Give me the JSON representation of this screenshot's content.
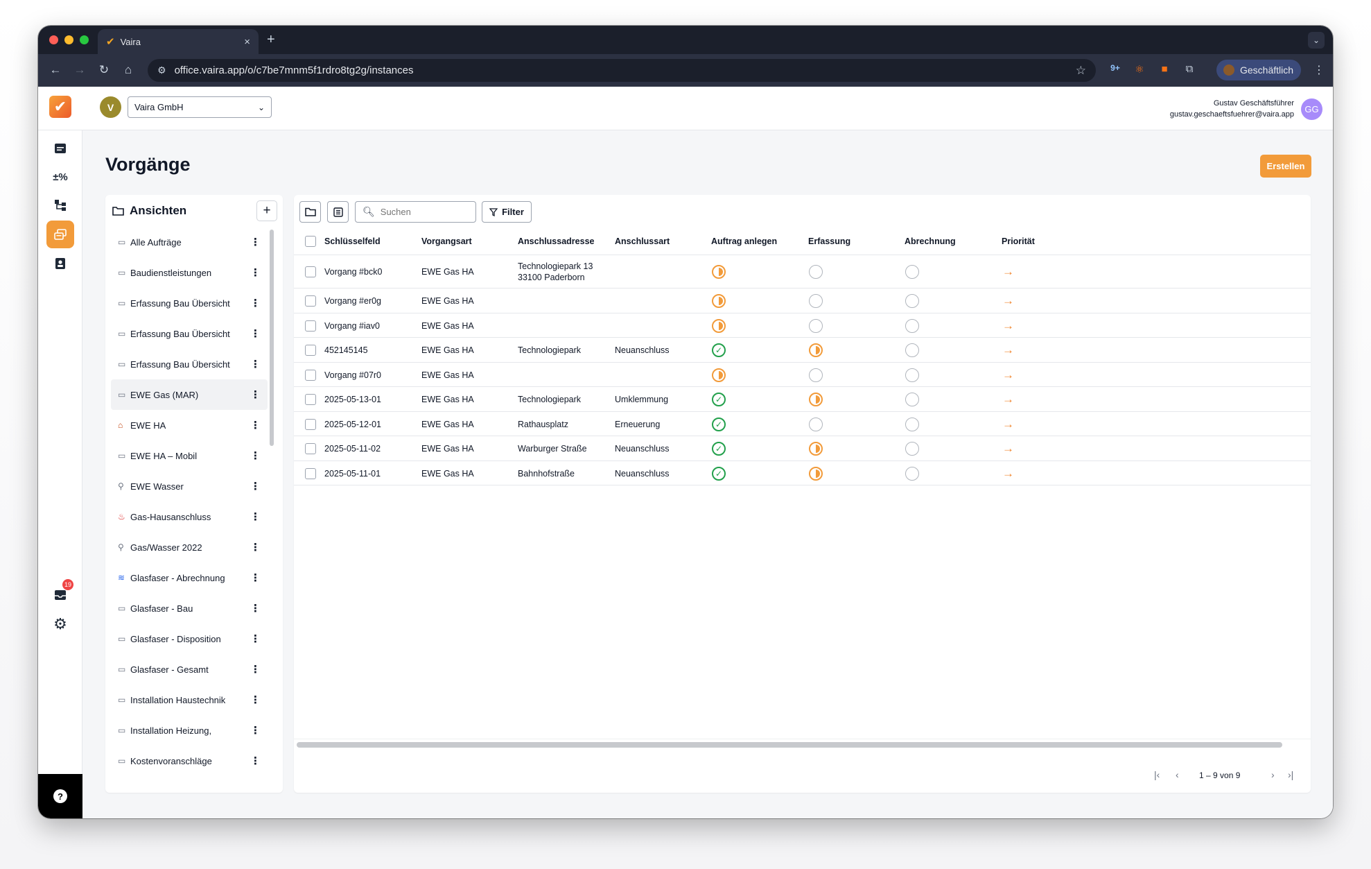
{
  "browser": {
    "tab_title": "Vaira",
    "url": "office.vaira.app/o/c7be7mnm5f1rdro8tg2g/instances",
    "profile_label": "Geschäftlich",
    "extension_badge": "9+",
    "colors": {
      "red": "#ff5f57",
      "yellow": "#febc2e",
      "green": "#28c840"
    }
  },
  "header": {
    "org_initial": "V",
    "org_name": "Vaira GmbH",
    "user_name": "Gustav Geschäftsführer",
    "user_email": "gustav.geschaeftsfuehrer@vaira.app",
    "user_initials": "GG"
  },
  "rail": {
    "inbox_badge": "19",
    "items": [
      "documents-icon",
      "calculator-icon",
      "hierarchy-icon",
      "processes-icon",
      "contacts-icon",
      "inbox-icon",
      "settings-icon",
      "help-icon"
    ]
  },
  "page": {
    "title": "Vorgänge",
    "create_label": "Erstellen"
  },
  "views": {
    "title": "Ansichten",
    "add_label": "+",
    "items": [
      {
        "icon": "folder-icon",
        "label": "Alle Aufträge"
      },
      {
        "icon": "folder-icon",
        "label": "Baudienstleistungen"
      },
      {
        "icon": "folder-icon",
        "label": "Erfassung Bau Übersicht"
      },
      {
        "icon": "folder-icon",
        "label": "Erfassung Bau Übersicht"
      },
      {
        "icon": "folder-icon",
        "label": "Erfassung Bau Übersicht"
      },
      {
        "icon": "folder-icon",
        "label": "EWE Gas (MAR)"
      },
      {
        "icon": "house-icon",
        "label": "EWE HA"
      },
      {
        "icon": "folder-icon",
        "label": "EWE HA – Mobil"
      },
      {
        "icon": "tap-icon",
        "label": "EWE Wasser"
      },
      {
        "icon": "fire-extinguisher-icon",
        "label": "Gas-Hausanschluss"
      },
      {
        "icon": "tap-icon",
        "label": "Gas/Wasser 2022"
      },
      {
        "icon": "wifi-icon",
        "label": "Glasfaser - Abrechnung"
      },
      {
        "icon": "folder-icon",
        "label": "Glasfaser - Bau"
      },
      {
        "icon": "folder-icon",
        "label": "Glasfaser - Disposition"
      },
      {
        "icon": "folder-icon",
        "label": "Glasfaser - Gesamt"
      },
      {
        "icon": "folder-icon",
        "label": "Installation Haustechnik"
      },
      {
        "icon": "folder-icon",
        "label": "Installation Heizung,"
      },
      {
        "icon": "folder-icon",
        "label": "Kostenvoranschläge"
      }
    ]
  },
  "toolbar": {
    "search_placeholder": "Suchen",
    "filter_label": "Filter"
  },
  "table": {
    "columns": [
      "Schlüsselfeld",
      "Vorgangsart",
      "Anschlussadresse",
      "Anschlussart",
      "Auftrag anlegen",
      "Erfassung",
      "Abrechnung",
      "Priorität"
    ],
    "rows": [
      {
        "key": "Vorgang #bck0",
        "type": "EWE Gas HA",
        "address": "Technologiepark 13",
        "address2": "33100 Paderborn",
        "kind": "",
        "auftrag": "progress",
        "erfassung": "open",
        "abrechnung": "open"
      },
      {
        "key": "Vorgang #er0g",
        "type": "EWE Gas HA",
        "address": "",
        "address2": "",
        "kind": "",
        "auftrag": "progress",
        "erfassung": "open",
        "abrechnung": "open"
      },
      {
        "key": "Vorgang #iav0",
        "type": "EWE Gas HA",
        "address": "",
        "address2": "",
        "kind": "",
        "auftrag": "progress",
        "erfassung": "open",
        "abrechnung": "open"
      },
      {
        "key": "452145145",
        "type": "EWE Gas HA",
        "address": "Technologiepark",
        "address2": "",
        "kind": "Neuanschluss",
        "auftrag": "done",
        "erfassung": "progress",
        "abrechnung": "open"
      },
      {
        "key": "Vorgang #07r0",
        "type": "EWE Gas HA",
        "address": "",
        "address2": "",
        "kind": "",
        "auftrag": "progress",
        "erfassung": "open",
        "abrechnung": "open"
      },
      {
        "key": "2025-05-13-01",
        "type": "EWE Gas HA",
        "address": "Technologiepark",
        "address2": "",
        "kind": "Umklemmung",
        "auftrag": "done",
        "erfassung": "progress",
        "abrechnung": "open"
      },
      {
        "key": "2025-05-12-01",
        "type": "EWE Gas HA",
        "address": "Rathausplatz",
        "address2": "",
        "kind": "Erneuerung",
        "auftrag": "done",
        "erfassung": "open",
        "abrechnung": "open"
      },
      {
        "key": "2025-05-11-02",
        "type": "EWE Gas HA",
        "address": "Warburger Straße",
        "address2": "",
        "kind": "Neuanschluss",
        "auftrag": "done",
        "erfassung": "progress",
        "abrechnung": "open"
      },
      {
        "key": "2025-05-11-01",
        "type": "EWE Gas HA",
        "address": "Bahnhofstraße",
        "address2": "",
        "kind": "Neuanschluss",
        "auftrag": "done",
        "erfassung": "progress",
        "abrechnung": "open"
      }
    ]
  },
  "pagination": {
    "info": "1 – 9 von 9"
  }
}
